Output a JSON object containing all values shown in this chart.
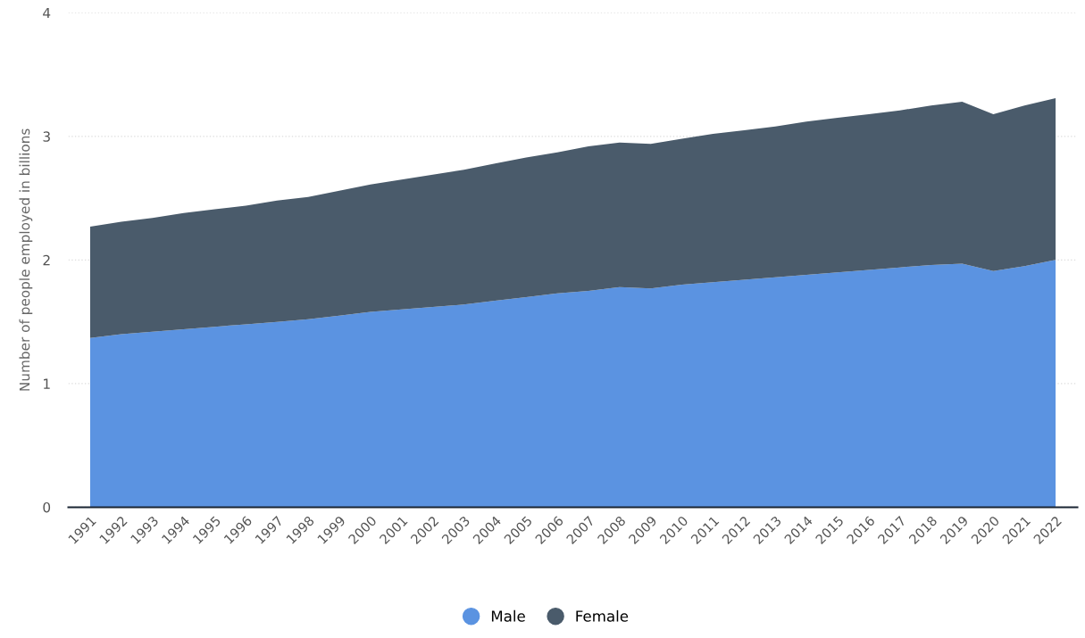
{
  "chart_data": {
    "type": "area",
    "stacked": true,
    "ylabel": "Number of people employed in billions",
    "categories": [
      "1991",
      "1992",
      "1993",
      "1994",
      "1995",
      "1996",
      "1997",
      "1998",
      "1999",
      "2000",
      "2001",
      "2002",
      "2003",
      "2004",
      "2005",
      "2006",
      "2007",
      "2008",
      "2009",
      "2010",
      "2011",
      "2012",
      "2013",
      "2014",
      "2015",
      "2016",
      "2017",
      "2018",
      "2019",
      "2020",
      "2021",
      "2022"
    ],
    "series": [
      {
        "name": "Male",
        "color": "#5b93e1",
        "values": [
          1.37,
          1.4,
          1.42,
          1.44,
          1.46,
          1.48,
          1.5,
          1.52,
          1.55,
          1.58,
          1.6,
          1.62,
          1.64,
          1.67,
          1.7,
          1.73,
          1.75,
          1.78,
          1.77,
          1.8,
          1.82,
          1.84,
          1.86,
          1.88,
          1.9,
          1.92,
          1.94,
          1.96,
          1.97,
          1.91,
          1.95,
          2.0
        ]
      },
      {
        "name": "Female",
        "color": "#4a5b6b",
        "values": [
          0.9,
          0.91,
          0.92,
          0.94,
          0.95,
          0.96,
          0.98,
          0.99,
          1.01,
          1.03,
          1.05,
          1.07,
          1.09,
          1.11,
          1.13,
          1.14,
          1.17,
          1.17,
          1.17,
          1.18,
          1.2,
          1.21,
          1.22,
          1.24,
          1.25,
          1.26,
          1.27,
          1.29,
          1.31,
          1.27,
          1.3,
          1.31
        ]
      }
    ],
    "ylim": [
      0,
      4
    ],
    "yticks": [
      0,
      1,
      2,
      3,
      4
    ],
    "grid": "y",
    "legend": "bottom"
  }
}
